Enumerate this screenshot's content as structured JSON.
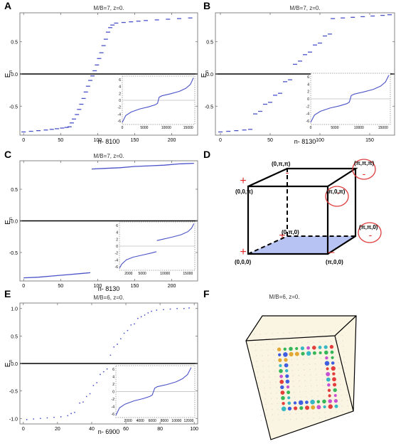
{
  "figure": {
    "panels": [
      {
        "letter": "A",
        "title": "M/B=7, z=0.",
        "xlabel": "n- 8100",
        "ylabel_main": "E",
        "ylabel_sub": "n"
      },
      {
        "letter": "B",
        "title": "M/B=7, z=0.",
        "xlabel": "n- 8130",
        "ylabel_main": "E",
        "ylabel_sub": "n"
      },
      {
        "letter": "C",
        "title": "M/B=7, z=0.",
        "xlabel": "n- 8130",
        "ylabel_main": "E",
        "ylabel_sub": "n"
      },
      {
        "letter": "D"
      },
      {
        "letter": "E",
        "title": "M/B=6, z=0.",
        "xlabel": "n- 6900",
        "ylabel_main": "E",
        "ylabel_sub": "n"
      },
      {
        "letter": "F",
        "title": "M/B=6, z=0."
      }
    ],
    "cube_labels": {
      "v000": "(0,0,0)",
      "vpi00": "(π,0,0)",
      "v0pi0": "(0,π,0)",
      "vpipi0": "(π,π,0)",
      "v00pi": "(0,0,π)",
      "vpi0pi": "(π,0,π)",
      "v0pipi": "(0,π,π)",
      "vpipipi": "(π,π,π)"
    },
    "colors": {
      "curve": "#4a52c8",
      "marker": "#e02a2a",
      "face": "#b7c3f2",
      "circle": "#dd3b3b",
      "panel_f_bg": "#faf4e2"
    }
  },
  "chart_data": [
    {
      "panel": "A",
      "type": "scatter",
      "title": "M/B=7, z=0.",
      "xlabel": "n- 8100",
      "ylabel": "E_n",
      "xlim": [
        -5,
        235
      ],
      "ylim": [
        -0.95,
        0.95
      ],
      "xticks": [
        0,
        50,
        100,
        150,
        200
      ],
      "yticks": [
        0.5,
        0.0,
        -0.5
      ],
      "series": [
        {
          "points": [
            [
              0,
              -0.9
            ],
            [
              10,
              -0.89
            ],
            [
              20,
              -0.88
            ],
            [
              30,
              -0.87
            ],
            [
              38,
              -0.86
            ],
            [
              45,
              -0.85
            ],
            [
              52,
              -0.84
            ],
            [
              58,
              -0.83
            ],
            [
              62,
              -0.82
            ],
            [
              65,
              -0.76
            ],
            [
              68,
              -0.7
            ],
            [
              72,
              -0.63
            ],
            [
              75,
              -0.55
            ],
            [
              78,
              -0.47
            ],
            [
              81,
              -0.38
            ],
            [
              84,
              -0.28
            ],
            [
              87,
              -0.19
            ],
            [
              90,
              -0.1
            ],
            [
              93,
              -0.03
            ],
            [
              96,
              0.05
            ],
            [
              99,
              0.14
            ],
            [
              102,
              0.24
            ],
            [
              105,
              0.33
            ],
            [
              108,
              0.44
            ],
            [
              111,
              0.54
            ],
            [
              114,
              0.65
            ],
            [
              117,
              0.72
            ],
            [
              120,
              0.76
            ],
            [
              125,
              0.79
            ],
            [
              135,
              0.8
            ],
            [
              145,
              0.81
            ],
            [
              155,
              0.82
            ],
            [
              165,
              0.83
            ],
            [
              180,
              0.84
            ],
            [
              195,
              0.85
            ],
            [
              210,
              0.86
            ],
            [
              225,
              0.87
            ]
          ]
        }
      ],
      "inset": {
        "xlim": [
          0,
          16500
        ],
        "ylim": [
          -7,
          7
        ],
        "xticks": [
          0,
          5000,
          10000,
          15000
        ],
        "yticks": [
          6,
          4,
          2,
          0,
          -2,
          -4,
          -6
        ],
        "points": [
          [
            0,
            -6.4
          ],
          [
            800,
            -4.4
          ],
          [
            2000,
            -3.4
          ],
          [
            4000,
            -2.5
          ],
          [
            6000,
            -1.9
          ],
          [
            7500,
            -1.3
          ],
          [
            8000,
            -0.9
          ],
          [
            8200,
            0.0
          ],
          [
            8400,
            0.9
          ],
          [
            9000,
            1.3
          ],
          [
            11000,
            1.9
          ],
          [
            13000,
            2.6
          ],
          [
            14500,
            3.5
          ],
          [
            15500,
            4.6
          ],
          [
            16200,
            6.5
          ]
        ]
      }
    },
    {
      "panel": "B",
      "type": "scatter",
      "title": "M/B=7, z=0.",
      "xlabel": "n- 8130",
      "ylabel": "E_n",
      "xlim": [
        -5,
        175
      ],
      "ylim": [
        -0.95,
        0.95
      ],
      "xticks": [
        0,
        50,
        100,
        150
      ],
      "yticks": [
        0.5,
        0.0,
        -0.5
      ],
      "series": [
        {
          "points": [
            [
              0,
              -0.9
            ],
            [
              8,
              -0.89
            ],
            [
              16,
              -0.88
            ],
            [
              24,
              -0.87
            ],
            [
              30,
              -0.86
            ],
            [
              35,
              -0.62
            ],
            [
              40,
              -0.58
            ],
            [
              45,
              -0.47
            ],
            [
              50,
              -0.44
            ],
            [
              55,
              -0.33
            ],
            [
              60,
              -0.3
            ],
            [
              65,
              -0.12
            ],
            [
              70,
              -0.09
            ],
            [
              75,
              0.15
            ],
            [
              80,
              0.2
            ],
            [
              85,
              0.3
            ],
            [
              90,
              0.34
            ],
            [
              95,
              0.45
            ],
            [
              100,
              0.48
            ],
            [
              105,
              0.59
            ],
            [
              110,
              0.62
            ],
            [
              113,
              0.86
            ],
            [
              123,
              0.87
            ],
            [
              133,
              0.88
            ],
            [
              143,
              0.89
            ],
            [
              153,
              0.9
            ],
            [
              163,
              0.91
            ],
            [
              170,
              0.92
            ]
          ]
        }
      ],
      "inset": {
        "xlim": [
          0,
          16500
        ],
        "ylim": [
          -7,
          7
        ],
        "xticks": [
          0,
          5000,
          10000,
          15000
        ],
        "yticks": [
          6,
          4,
          2,
          0,
          -2,
          -4,
          -6
        ],
        "points": [
          [
            0,
            -6.4
          ],
          [
            800,
            -4.4
          ],
          [
            2000,
            -3.4
          ],
          [
            4000,
            -2.5
          ],
          [
            6000,
            -1.9
          ],
          [
            7500,
            -1.3
          ],
          [
            8000,
            -0.9
          ],
          [
            8200,
            0.0
          ],
          [
            8400,
            0.9
          ],
          [
            9000,
            1.3
          ],
          [
            11000,
            1.9
          ],
          [
            13000,
            2.6
          ],
          [
            14500,
            3.5
          ],
          [
            15500,
            4.6
          ],
          [
            16200,
            6.5
          ]
        ]
      }
    },
    {
      "panel": "C",
      "type": "line",
      "title": "M/B=7, z=0.",
      "xlabel": "n- 8130",
      "ylabel": "E_n",
      "xlim": [
        -5,
        235
      ],
      "ylim": [
        -0.95,
        0.95
      ],
      "xticks": [
        0,
        50,
        100,
        150,
        200
      ],
      "yticks": [
        0.5,
        0.0,
        -0.5
      ],
      "series": [
        {
          "points": [
            [
              0,
              -0.9
            ],
            [
              20,
              -0.89
            ],
            [
              40,
              -0.87
            ],
            [
              60,
              -0.85
            ],
            [
              80,
              -0.83
            ],
            [
              90,
              -0.82
            ]
          ]
        },
        {
          "points": [
            [
              92,
              0.82
            ],
            [
              110,
              0.83
            ],
            [
              130,
              0.84
            ],
            [
              150,
              0.86
            ],
            [
              170,
              0.87
            ],
            [
              190,
              0.88
            ],
            [
              210,
              0.9
            ],
            [
              230,
              0.91
            ]
          ]
        }
      ],
      "inset": {
        "xlim": [
          0,
          16500
        ],
        "ylim": [
          -7,
          7
        ],
        "xticks": [
          2000,
          5000,
          10000,
          15000
        ],
        "yticks": [
          6,
          4,
          2,
          0,
          -2,
          -4,
          -6
        ],
        "segments": [
          [
            [
              0,
              -6.4
            ],
            [
              500,
              -5.2
            ],
            [
              1500,
              -4.0
            ],
            [
              3000,
              -3.2
            ],
            [
              5000,
              -2.6
            ],
            [
              7000,
              -2.0
            ],
            [
              8100,
              -1.6
            ]
          ],
          [
            [
              8200,
              1.6
            ],
            [
              9500,
              2.0
            ],
            [
              11500,
              2.6
            ],
            [
              13500,
              3.3
            ],
            [
              15000,
              4.2
            ],
            [
              15800,
              5.2
            ],
            [
              16300,
              6.5
            ]
          ]
        ]
      }
    },
    {
      "panel": "E",
      "type": "scatter",
      "title": "M/B=6, z=0.",
      "xlabel": "n- 6900",
      "ylabel": "E_n",
      "xlim": [
        -2,
        102
      ],
      "ylim": [
        -1.1,
        1.1
      ],
      "xticks": [
        0,
        20,
        40,
        60,
        80,
        100
      ],
      "yticks": [
        1.0,
        0.5,
        0.0,
        -0.5,
        -1.0
      ],
      "series": [
        {
          "points": [
            [
              2,
              -1.02
            ],
            [
              6,
              -1.01
            ],
            [
              10,
              -1.0
            ],
            [
              14,
              -0.99
            ],
            [
              18,
              -0.98
            ],
            [
              22,
              -0.97
            ],
            [
              26,
              -0.95
            ],
            [
              28,
              -0.91
            ],
            [
              30,
              -0.89
            ],
            [
              33,
              -0.72
            ],
            [
              35,
              -0.7
            ],
            [
              37,
              -0.6
            ],
            [
              39,
              -0.55
            ],
            [
              41,
              -0.4
            ],
            [
              43,
              -0.35
            ],
            [
              45,
              -0.2
            ],
            [
              47,
              -0.15
            ],
            [
              49,
              -0.1
            ],
            [
              51,
              0.15
            ],
            [
              53,
              0.3
            ],
            [
              55,
              0.35
            ],
            [
              57,
              0.45
            ],
            [
              59,
              0.55
            ],
            [
              61,
              0.6
            ],
            [
              63,
              0.7
            ],
            [
              65,
              0.72
            ],
            [
              67,
              0.82
            ],
            [
              69,
              0.85
            ],
            [
              71,
              0.88
            ],
            [
              73,
              0.92
            ],
            [
              75,
              0.95
            ],
            [
              78,
              0.97
            ],
            [
              82,
              0.98
            ],
            [
              86,
              0.99
            ],
            [
              90,
              1.0
            ],
            [
              94,
              1.0
            ],
            [
              97,
              1.01
            ]
          ]
        }
      ],
      "inset": {
        "xlim": [
          0,
          13000
        ],
        "ylim": [
          -7,
          7
        ],
        "xticks": [
          2000,
          4000,
          6000,
          8000,
          10000,
          12000
        ],
        "yticks": [
          6,
          4,
          2,
          0,
          -2,
          -4,
          -6
        ],
        "points": [
          [
            0,
            -6.4
          ],
          [
            600,
            -4.4
          ],
          [
            1500,
            -3.4
          ],
          [
            3000,
            -2.5
          ],
          [
            4500,
            -1.9
          ],
          [
            5600,
            -1.3
          ],
          [
            6000,
            -0.9
          ],
          [
            6200,
            0.0
          ],
          [
            6400,
            0.9
          ],
          [
            6800,
            1.3
          ],
          [
            8400,
            1.9
          ],
          [
            9900,
            2.6
          ],
          [
            11000,
            3.5
          ],
          [
            11800,
            4.6
          ],
          [
            12400,
            6.5
          ]
        ]
      }
    }
  ]
}
